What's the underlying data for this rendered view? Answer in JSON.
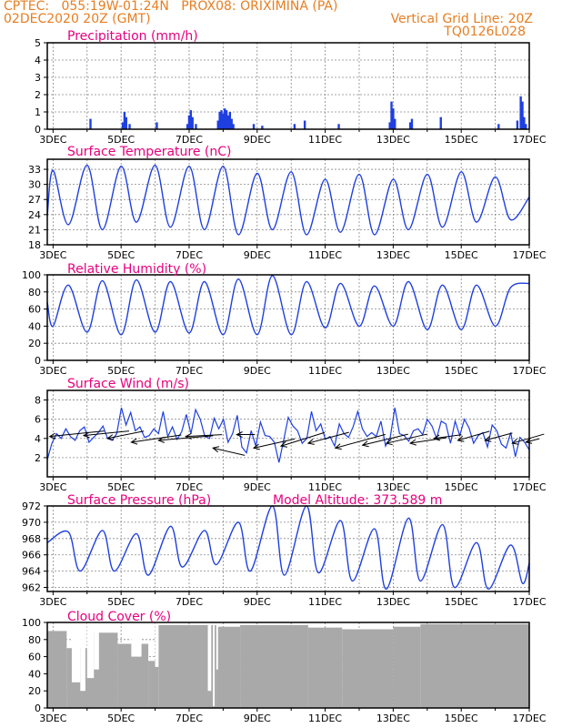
{
  "header": {
    "line1": "CPTEC:   055:19W-01:24N   PROX08: ORIXIMINA (PA)",
    "line2": "02DEC2020 20Z (GMT)",
    "right1": "Vertical Grid Line: 20Z",
    "right2": "TQ0126L028"
  },
  "colors": {
    "header": "#e67e22",
    "title": "#e6007e",
    "series": "#1f3fe0",
    "cloud": "#a9a9a9",
    "arrow": "#000000"
  },
  "x_axis": {
    "day_labels": [
      "3DEC",
      "5DEC",
      "7DEC",
      "9DEC",
      "11DEC",
      "13DEC",
      "15DEC",
      "17DEC"
    ],
    "days_start": 2.83,
    "days_end": 17.0
  },
  "chart_data": [
    {
      "type": "bar",
      "title": "Precipitation (mm/h)",
      "ylim": [
        0,
        5
      ],
      "yticks": [
        0,
        1,
        2,
        3,
        4,
        5
      ],
      "x_unit": "day of DEC 2020",
      "events": [
        [
          4.1,
          0.6
        ],
        [
          5.05,
          0.4
        ],
        [
          5.1,
          1.0
        ],
        [
          5.15,
          0.7
        ],
        [
          5.25,
          0.3
        ],
        [
          6.05,
          0.4
        ],
        [
          6.95,
          0.3
        ],
        [
          7.0,
          0.8
        ],
        [
          7.05,
          1.1
        ],
        [
          7.1,
          0.7
        ],
        [
          7.2,
          0.3
        ],
        [
          7.85,
          0.5
        ],
        [
          7.9,
          1.0
        ],
        [
          7.95,
          1.1
        ],
        [
          8.0,
          0.9
        ],
        [
          8.05,
          1.2
        ],
        [
          8.1,
          1.1
        ],
        [
          8.15,
          0.8
        ],
        [
          8.2,
          1.0
        ],
        [
          8.25,
          0.6
        ],
        [
          8.3,
          0.3
        ],
        [
          8.9,
          0.3
        ],
        [
          9.15,
          0.2
        ],
        [
          10.1,
          0.3
        ],
        [
          10.4,
          0.5
        ],
        [
          11.4,
          0.3
        ],
        [
          12.9,
          0.4
        ],
        [
          12.95,
          1.6
        ],
        [
          13.0,
          1.2
        ],
        [
          13.05,
          0.6
        ],
        [
          13.5,
          0.4
        ],
        [
          13.55,
          0.6
        ],
        [
          14.4,
          0.7
        ],
        [
          16.1,
          0.3
        ],
        [
          16.65,
          0.5
        ],
        [
          16.75,
          1.9
        ],
        [
          16.8,
          1.6
        ],
        [
          16.85,
          0.7
        ],
        [
          16.9,
          0.3
        ]
      ]
    },
    {
      "type": "line",
      "title": "Surface Temperature (nC)",
      "ylim": [
        18,
        35
      ],
      "yticks": [
        18,
        21,
        24,
        27,
        30,
        33
      ],
      "x_unit": "day of DEC 2020",
      "daily_max": [
        32.8,
        33.8,
        33.6,
        33.8,
        33.6,
        33.6,
        32.2,
        32.5,
        31.0,
        32.0,
        31.0,
        32.0,
        32.5,
        31.5,
        29.5
      ],
      "daily_min": [
        23.5,
        22.0,
        21.0,
        22.5,
        21.5,
        21.0,
        20.0,
        21.0,
        20.0,
        20.5,
        20.0,
        21.0,
        21.5,
        22.5,
        23.0,
        24.0
      ],
      "start_value": 23.8,
      "end_value": 27.5
    },
    {
      "type": "line",
      "title": "Relative Humidity (%)",
      "ylim": [
        0,
        100
      ],
      "yticks": [
        0,
        20,
        40,
        60,
        80,
        100
      ],
      "x_unit": "day of DEC 2020",
      "daily_min": [
        40,
        33,
        30,
        33,
        32,
        30,
        30,
        30,
        38,
        40,
        40,
        36,
        36,
        40,
        50
      ],
      "daily_max": [
        98,
        88,
        93,
        94,
        92,
        92,
        95,
        99,
        92,
        90,
        87,
        92,
        88,
        88,
        85,
        80
      ],
      "start_value": 68,
      "end_value": 90
    },
    {
      "type": "line",
      "title": "Surface Wind (m/s)",
      "ylim": [
        0,
        9
      ],
      "yticks": [
        2,
        4,
        6,
        8
      ],
      "x_unit": "day of DEC 2020",
      "values": [
        1.8,
        3.5,
        4.5,
        4.0,
        5.0,
        4.2,
        3.8,
        4.8,
        5.2,
        3.6,
        4.1,
        4.6,
        5.3,
        4.0,
        3.8,
        4.5,
        7.2,
        5.4,
        6.7,
        4.8,
        5.2,
        4.1,
        4.3,
        5.0,
        4.5,
        6.8,
        4.2,
        5.2,
        3.9,
        4.7,
        6.5,
        4.5,
        7.0,
        6.0,
        4.2,
        4.0,
        6.1,
        5.0,
        6.0,
        3.6,
        4.5,
        6.4,
        3.1,
        2.5,
        4.8,
        3.2,
        5.7,
        4.3,
        4.2,
        3.6,
        1.5,
        3.8,
        6.2,
        5.3,
        4.8,
        3.5,
        4.0,
        6.8,
        4.8,
        5.5,
        3.9,
        4.2,
        3.2,
        5.5,
        4.5,
        4.1,
        5.2,
        6.8,
        5.0,
        4.2,
        4.6,
        4.2,
        5.8,
        3.2,
        4.1,
        7.2,
        4.5,
        4.3,
        3.7,
        4.8,
        5.0,
        4.4,
        6.0,
        5.3,
        4.0,
        5.8,
        5.5,
        3.5,
        5.8,
        4.3,
        6.0,
        5.1,
        3.5,
        4.3,
        4.6,
        3.1,
        5.4,
        4.8,
        3.4,
        3.0,
        4.6,
        2.1,
        4.1,
        3.6,
        2.8
      ],
      "arrows": [
        [
          2.9,
          4.2,
          60,
          6
        ],
        [
          3.9,
          4.3,
          50,
          5
        ],
        [
          4.6,
          4.0,
          40,
          8
        ],
        [
          5.3,
          3.6,
          55,
          8
        ],
        [
          6.1,
          3.8,
          60,
          5
        ],
        [
          6.9,
          4.2,
          40,
          2
        ],
        [
          7.7,
          3.0,
          35,
          -8
        ],
        [
          8.4,
          4.4,
          20,
          0
        ],
        [
          8.9,
          3.0,
          45,
          10
        ],
        [
          9.7,
          3.2,
          48,
          15
        ],
        [
          10.5,
          3.5,
          45,
          12
        ],
        [
          11.3,
          3.0,
          55,
          15
        ],
        [
          12.1,
          3.3,
          50,
          12
        ],
        [
          12.8,
          3.5,
          45,
          10
        ],
        [
          13.5,
          3.5,
          40,
          6
        ],
        [
          14.2,
          4.0,
          30,
          4
        ],
        [
          14.9,
          3.8,
          35,
          10
        ],
        [
          15.7,
          3.8,
          30,
          8
        ],
        [
          16.5,
          3.5,
          35,
          10
        ],
        [
          16.9,
          3.6,
          15,
          4
        ]
      ]
    },
    {
      "type": "line",
      "title": "Surface Pressure (hPa)",
      "subtitle": "Model Altitude: 373.589  m",
      "ylim": [
        961.5,
        972
      ],
      "yticks": [
        962,
        964,
        966,
        968,
        970,
        972
      ],
      "x_unit": "day of DEC 2020",
      "daily_max": [
        969.3,
        968.8,
        969.0,
        968.6,
        969.5,
        969.0,
        970.0,
        972.0,
        972.0,
        970.2,
        969.2,
        970.5,
        969.7,
        967.5,
        967.2
      ],
      "daily_min": [
        963.8,
        964.0,
        964.0,
        963.5,
        964.5,
        964.8,
        964.0,
        963.5,
        963.8,
        962.8,
        961.8,
        962.8,
        962.0,
        961.8,
        962.5
      ],
      "start_value": 967.5,
      "end_value": 965.0
    },
    {
      "type": "bar",
      "title": "Cloud Cover (%)",
      "ylim": [
        0,
        100
      ],
      "yticks": [
        0,
        20,
        40,
        60,
        80,
        100
      ],
      "x_unit": "day of DEC 2020",
      "segments": [
        [
          2.83,
          3.4,
          90
        ],
        [
          3.4,
          4.1,
          70
        ],
        [
          4.1,
          4.9,
          88
        ],
        [
          4.9,
          5.8,
          75
        ],
        [
          5.8,
          6.1,
          55
        ],
        [
          6.1,
          7.8,
          97
        ],
        [
          7.8,
          8.5,
          95
        ],
        [
          8.5,
          10.5,
          97
        ],
        [
          10.5,
          11.5,
          94
        ],
        [
          11.5,
          13.0,
          92
        ],
        [
          13.0,
          13.8,
          95
        ],
        [
          13.8,
          17.0,
          98
        ]
      ],
      "dips": [
        [
          3.55,
          3.8,
          30
        ],
        [
          3.8,
          3.95,
          20
        ],
        [
          4.0,
          4.2,
          35
        ],
        [
          4.2,
          4.35,
          45
        ],
        [
          5.3,
          5.6,
          60
        ],
        [
          6.0,
          6.1,
          48
        ],
        [
          7.55,
          7.65,
          20
        ],
        [
          7.7,
          7.75,
          2
        ],
        [
          7.8,
          7.85,
          45
        ]
      ]
    }
  ]
}
